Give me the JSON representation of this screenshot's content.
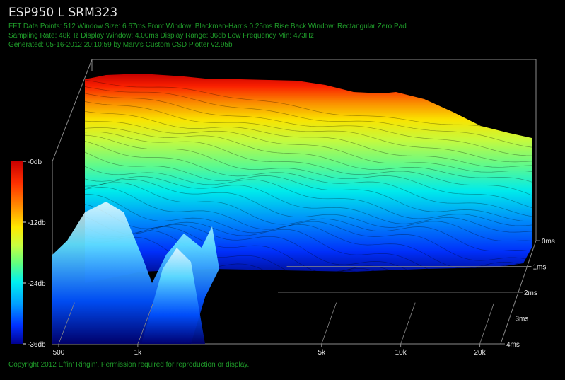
{
  "header": {
    "title": "ESP950 L SRM323",
    "line1": "FFT Data Points: 512   Window Size: 6.67ms    Front Window: Blackman-Harris 0.25ms Rise    Back Window: Rectangular Zero Pad",
    "line2": "Sampling Rate: 48kHz   Display Window: 4.00ms    Display Range: 36db   Low Frequency Min: 473Hz",
    "line3": "Generated: 05-16-2012 20:10:59 by Marv's Custom CSD Plotter v2.95b"
  },
  "footer": {
    "copyright": "Copyright 2012 Effin' Ringin'. Permission required for reproduction or display."
  },
  "colors": {
    "background": "#000000",
    "info_text": "#1f9c2a",
    "title_text": "#e8e8e8",
    "grid": "#8a8a8a"
  },
  "chart_data": {
    "type": "waterfall",
    "title": "ESP950 L SRM323",
    "x_axis": {
      "scale": "log",
      "range_hz": [
        473,
        24000
      ],
      "ticks": [
        "500",
        "1k",
        "5k",
        "10k",
        "20k"
      ],
      "tick_values": [
        500,
        1000,
        5000,
        10000,
        20000
      ]
    },
    "time_axis": {
      "range_ms": [
        0,
        4
      ],
      "ticks": [
        "0ms",
        "1ms",
        "2ms",
        "3ms",
        "4ms"
      ]
    },
    "level_axis": {
      "range_db": [
        -36,
        0
      ],
      "ticks": [
        "-0db",
        "-12db",
        "-24db",
        "-36db"
      ]
    },
    "colormap": [
      "#c80000",
      "#ff3000",
      "#ff9000",
      "#ffe800",
      "#c8ff40",
      "#60ff80",
      "#00f0f0",
      "#00a0ff",
      "#0030ff",
      "#000090"
    ],
    "front_slice_db": [
      {
        "hz": 500,
        "db": -1
      },
      {
        "hz": 1000,
        "db": -1
      },
      {
        "hz": 1500,
        "db": -1.5
      },
      {
        "hz": 2000,
        "db": -2
      },
      {
        "hz": 3000,
        "db": -2.5
      },
      {
        "hz": 4000,
        "db": -3
      },
      {
        "hz": 5000,
        "db": -2.5
      },
      {
        "hz": 6000,
        "db": -2
      },
      {
        "hz": 7000,
        "db": -2.5
      },
      {
        "hz": 8000,
        "db": -5
      },
      {
        "hz": 10000,
        "db": -4
      },
      {
        "hz": 12000,
        "db": -8
      },
      {
        "hz": 15000,
        "db": -10
      },
      {
        "hz": 20000,
        "db": -14
      },
      {
        "hz": 24000,
        "db": -18
      }
    ]
  }
}
